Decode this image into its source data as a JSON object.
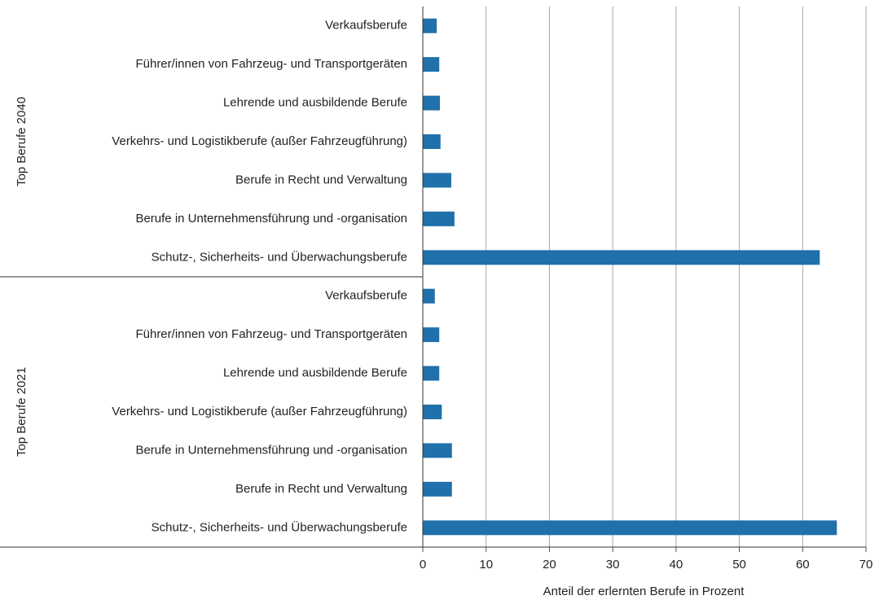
{
  "chart_data": {
    "type": "bar",
    "orientation": "horizontal",
    "xlabel": "Anteil der erlernten  Berufe in Prozent",
    "color": "#2070ab",
    "xlim": [
      0,
      70
    ],
    "xticks": [
      0,
      10,
      20,
      30,
      40,
      50,
      60,
      70
    ],
    "grid": true,
    "groups": [
      {
        "name": "Top Berufe 2040",
        "categories": [
          "Verkaufsberufe",
          "Führer/innen von Fahrzeug- und Transportgeräten",
          "Lehrende und ausbildende Berufe",
          "Verkehrs- und Logistikberufe (außer Fahrzeugführung)",
          "Berufe in Recht und Verwaltung",
          "Berufe in Unternehmensführung und -organisation",
          "Schutz-, Sicherheits- und Überwachungsberufe"
        ],
        "values": [
          2.2,
          2.6,
          2.7,
          2.8,
          4.5,
          5.0,
          62.7
        ]
      },
      {
        "name": "Top Berufe 2021",
        "categories": [
          "Verkaufsberufe",
          "Führer/innen von Fahrzeug- und Transportgeräten",
          "Lehrende und ausbildende Berufe",
          "Verkehrs- und Logistikberufe (außer Fahrzeugführung)",
          "Berufe in Unternehmensführung und -organisation",
          "Berufe in Recht und Verwaltung",
          "Schutz-, Sicherheits- und Überwachungsberufe"
        ],
        "values": [
          1.9,
          2.6,
          2.6,
          3.0,
          4.6,
          4.6,
          65.4
        ]
      }
    ]
  }
}
